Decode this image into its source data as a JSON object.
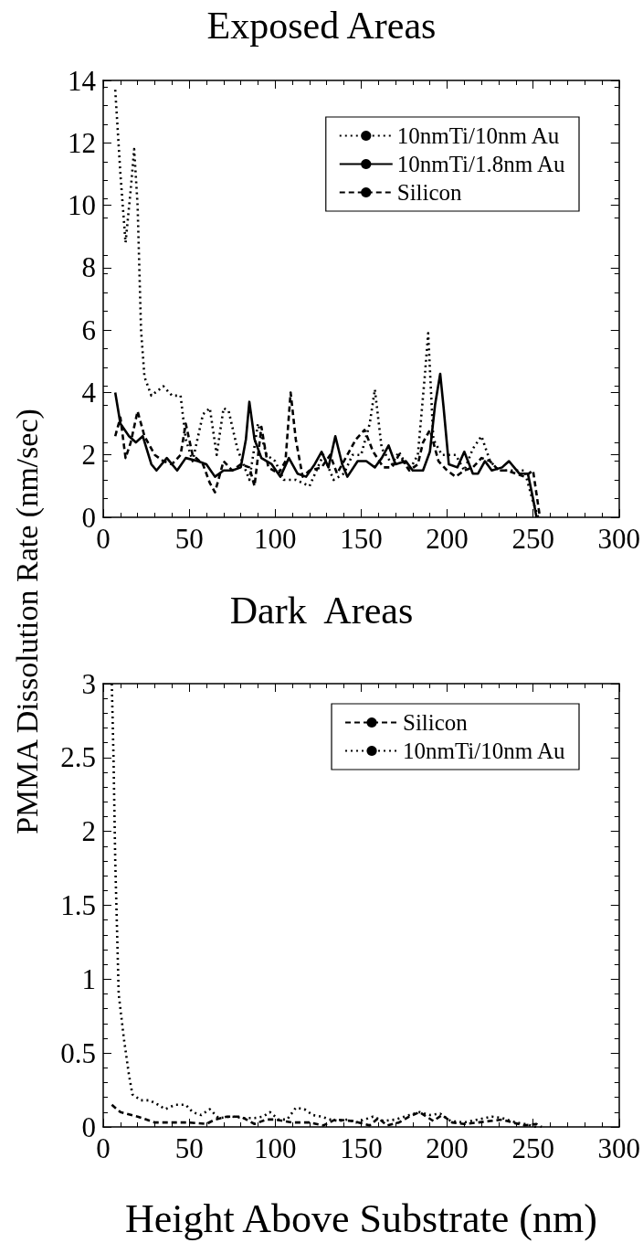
{
  "chart_data": [
    {
      "type": "line",
      "title": "Exposed Areas",
      "ylabel": "PMMA Dissolution Rate (nm/sec)",
      "xlim": [
        0,
        300
      ],
      "xticks": [
        0,
        50,
        100,
        150,
        200,
        250,
        300
      ],
      "ylim": [
        0,
        14
      ],
      "yticks": [
        0,
        2,
        4,
        6,
        8,
        10,
        12,
        14
      ],
      "legend": "top right",
      "marker": "none",
      "grid": false,
      "series": [
        {
          "name": "10nmTi/10nm Au",
          "color": "#000000",
          "line_style": "dotted",
          "x": [
            7,
            10,
            13,
            16,
            18,
            20,
            22,
            24,
            28,
            35,
            40,
            45,
            48,
            52,
            58,
            62,
            66,
            70,
            73,
            78,
            85,
            90,
            95,
            100,
            105,
            112,
            120,
            128,
            134,
            140,
            145,
            150,
            155,
            158,
            162,
            168,
            172,
            178,
            183,
            187,
            189,
            192,
            197,
            205,
            210,
            215,
            220,
            225,
            230,
            238,
            245,
            250,
            253
          ],
          "values": [
            13.7,
            11,
            8.8,
            10.5,
            11.8,
            10,
            6,
            4.5,
            3.9,
            4.2,
            3.9,
            3.9,
            2.5,
            1.8,
            3.3,
            3.5,
            2,
            3.5,
            3.4,
            2.2,
            1.2,
            3,
            2,
            1.8,
            1.2,
            1.2,
            1,
            2,
            1.2,
            1.4,
            2,
            2,
            3,
            4.1,
            2.2,
            1.7,
            2.1,
            1.5,
            2,
            4.5,
            5.9,
            2.5,
            2,
            2,
            1.5,
            2.2,
            2.6,
            1.8,
            1.5,
            1.5,
            1.5,
            0.5,
            0
          ]
        },
        {
          "name": "10nmTi/1.8nm Au",
          "color": "#000000",
          "line_style": "solid",
          "x": [
            7,
            10,
            15,
            19,
            23,
            28,
            31,
            37,
            43,
            48,
            55,
            60,
            65,
            70,
            75,
            80,
            83,
            85,
            88,
            92,
            98,
            103,
            108,
            113,
            118,
            123,
            127,
            131,
            135,
            139,
            142,
            148,
            153,
            158,
            162,
            166,
            170,
            176,
            180,
            186,
            190,
            193,
            196,
            198,
            201,
            206,
            210,
            215,
            218,
            222,
            226,
            232,
            236,
            242,
            247,
            250,
            252
          ],
          "values": [
            4,
            3,
            2.6,
            2.4,
            2.6,
            1.7,
            1.5,
            1.9,
            1.5,
            1.9,
            1.8,
            1.7,
            1.3,
            1.5,
            1.5,
            1.6,
            2.5,
            3.7,
            2.5,
            1.9,
            1.7,
            1.3,
            1.9,
            1.4,
            1.3,
            1.7,
            2.1,
            1.6,
            2.6,
            1.7,
            1.3,
            1.8,
            1.8,
            1.6,
            1.9,
            2.3,
            1.7,
            1.8,
            1.5,
            1.5,
            2.1,
            3.6,
            4.6,
            3.5,
            1.7,
            1.6,
            2.1,
            1.4,
            1.4,
            1.8,
            1.5,
            1.6,
            1.8,
            1.4,
            1.4,
            0.6,
            0
          ]
        },
        {
          "name": "Silicon",
          "color": "#000000",
          "line_style": "dashed",
          "x": [
            7,
            10,
            13,
            16,
            20,
            24,
            30,
            35,
            40,
            45,
            48,
            52,
            58,
            62,
            65,
            70,
            75,
            80,
            85,
            88,
            92,
            96,
            102,
            106,
            109,
            112,
            116,
            120,
            127,
            132,
            136,
            142,
            147,
            152,
            157,
            163,
            168,
            172,
            178,
            183,
            186,
            190,
            195,
            200,
            205,
            210,
            215,
            220,
            225,
            230,
            235,
            240,
            245,
            250,
            254
          ],
          "values": [
            2.6,
            3.2,
            1.9,
            2.4,
            3.4,
            2.6,
            2,
            1.8,
            1.7,
            2,
            3,
            2,
            1.7,
            1.1,
            0.8,
            1.8,
            1.5,
            1.7,
            1.6,
            1,
            2.9,
            1.6,
            1.4,
            1.8,
            4,
            2.5,
            1.3,
            1.5,
            1.6,
            2,
            1.4,
            2,
            2.5,
            2.8,
            2.1,
            1.6,
            1.6,
            2,
            1.5,
            1.7,
            2.4,
            2.8,
            1.8,
            1.5,
            1.3,
            1.5,
            1.6,
            1.9,
            1.8,
            1.5,
            1.5,
            1.4,
            1.3,
            1.5,
            0
          ]
        }
      ]
    },
    {
      "type": "line",
      "title": "Dark  Areas",
      "xlabel": "Height Above Substrate (nm)",
      "xlim": [
        0,
        300
      ],
      "xticks": [
        0,
        50,
        100,
        150,
        200,
        250,
        300
      ],
      "ylim": [
        0,
        3
      ],
      "yticks": [
        0,
        0.5,
        1,
        1.5,
        2,
        2.5,
        3
      ],
      "legend": "top right",
      "marker": "none",
      "grid": false,
      "series": [
        {
          "name": "Silicon",
          "color": "#000000",
          "line_style": "dashed",
          "x": [
            5,
            10,
            20,
            30,
            40,
            50,
            60,
            65,
            72,
            80,
            88,
            95,
            100,
            110,
            120,
            128,
            135,
            145,
            155,
            160,
            165,
            172,
            178,
            184,
            188,
            192,
            197,
            203,
            210,
            218,
            225,
            232,
            238,
            245,
            252,
            255
          ],
          "values": [
            0.15,
            0.1,
            0.07,
            0.03,
            0.03,
            0.03,
            0.02,
            0.05,
            0.07,
            0.07,
            0.02,
            0.05,
            0.05,
            0.03,
            0.03,
            0.01,
            0.05,
            0.04,
            0.01,
            0.06,
            0.01,
            0.03,
            0.07,
            0.1,
            0.07,
            0.04,
            0.08,
            0.03,
            0.02,
            0.03,
            0.04,
            0.05,
            0.03,
            0.01,
            0.02,
            0
          ]
        },
        {
          "name": "10nmTi/10nm Au",
          "color": "#000000",
          "line_style": "dotted",
          "x": [
            5,
            6,
            7,
            9,
            12,
            15,
            17,
            22,
            27,
            32,
            36,
            42,
            48,
            52,
            57,
            62,
            67,
            75,
            82,
            88,
            93,
            97,
            102,
            107,
            112,
            117,
            122,
            127,
            132,
            137,
            142,
            147,
            152,
            157,
            163,
            170,
            178,
            184,
            190,
            196,
            202,
            210,
            218,
            226,
            232,
            240,
            245,
            252
          ],
          "values": [
            3,
            2.5,
            1.8,
            0.9,
            0.6,
            0.35,
            0.22,
            0.18,
            0.18,
            0.15,
            0.12,
            0.15,
            0.15,
            0.1,
            0.08,
            0.12,
            0.06,
            0.07,
            0.06,
            0.06,
            0.07,
            0.1,
            0.05,
            0.05,
            0.13,
            0.12,
            0.08,
            0.07,
            0.05,
            0.04,
            0.05,
            0.03,
            0.05,
            0.07,
            0.04,
            0.05,
            0.08,
            0.1,
            0.08,
            0.09,
            0.04,
            0.03,
            0.05,
            0.07,
            0.06,
            0.03,
            0.02,
            0
          ]
        }
      ]
    }
  ]
}
